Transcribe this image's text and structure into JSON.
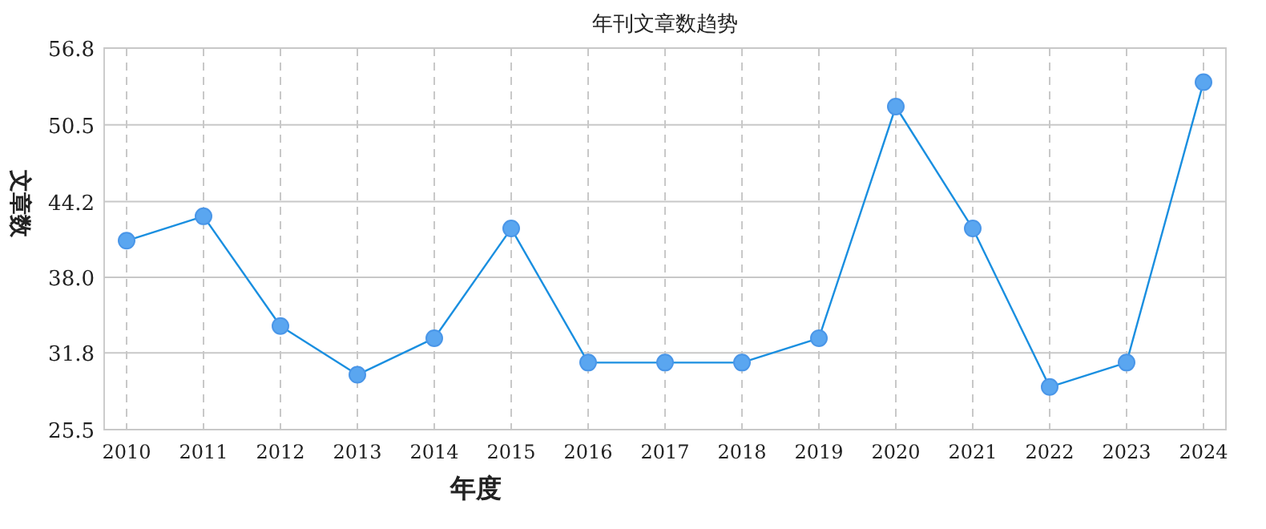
{
  "chart_data": {
    "type": "line",
    "title": "年刊文章数趋势",
    "xlabel": "年度",
    "ylabel": "文章数",
    "categories": [
      "2010",
      "2011",
      "2012",
      "2013",
      "2014",
      "2015",
      "2016",
      "2017",
      "2018",
      "2019",
      "2020",
      "2021",
      "2022",
      "2023",
      "2024"
    ],
    "series": [
      {
        "color": "#1a8fe0",
        "values": [
          41,
          43,
          34,
          30,
          33,
          42,
          31,
          31,
          31,
          33,
          52,
          42,
          29,
          31,
          54
        ]
      }
    ],
    "ylim": [
      25.5,
      56.8
    ],
    "yticks": [
      25.5,
      31.8,
      {
        "value": 38,
        "label": "38.0"
      },
      44.2,
      50.5,
      56.8
    ],
    "grid": true,
    "marker": "circle",
    "line_style": "solid"
  }
}
